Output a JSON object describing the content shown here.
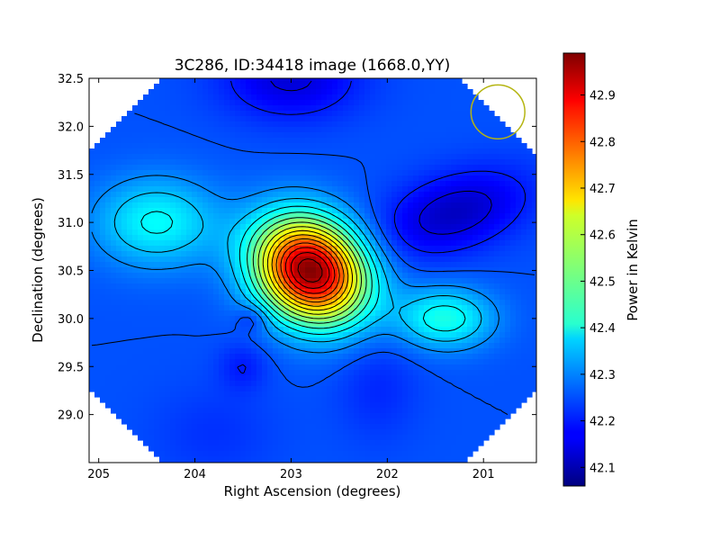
{
  "chart_data": {
    "type": "heatmap",
    "title": "3C286, ID:34418 image (1668.0,YY)",
    "xlabel": "Right Ascension (degrees)",
    "ylabel": "Declination (degrees)",
    "xlim": [
      205.1,
      200.45
    ],
    "ylim": [
      28.5,
      32.5
    ],
    "x_ticks": [
      205,
      204,
      203,
      202,
      201
    ],
    "x_tick_labels": [
      "205",
      "204",
      "203",
      "202",
      "201"
    ],
    "y_ticks": [
      29.0,
      29.5,
      30.0,
      30.5,
      31.0,
      31.5,
      32.0,
      32.5
    ],
    "y_tick_labels": [
      "29.0",
      "29.5",
      "30.0",
      "30.5",
      "31.0",
      "31.5",
      "32.0",
      "32.5"
    ],
    "colorbar": {
      "label": "Power in Kelvin",
      "colormap": "jet",
      "range": [
        42.06,
        42.99
      ],
      "ticks": [
        42.1,
        42.2,
        42.3,
        42.4,
        42.5,
        42.6,
        42.7,
        42.8,
        42.9
      ],
      "tick_labels": [
        "42.1",
        "42.2",
        "42.3",
        "42.4",
        "42.5",
        "42.6",
        "42.7",
        "42.8",
        "42.9"
      ]
    },
    "background_level": 42.25,
    "features": [
      {
        "ra": 202.8,
        "dec": 30.5,
        "peak": 42.99
      },
      {
        "ra": 204.4,
        "dec": 31.0,
        "peak": 42.41
      },
      {
        "ra": 201.4,
        "dec": 30.0,
        "peak": 42.43
      },
      {
        "ra": 201.3,
        "dec": 31.1,
        "peak": 42.12
      },
      {
        "ra": 203.0,
        "dec": 32.5,
        "peak": 42.14
      },
      {
        "ra": 203.4,
        "dec": 30.0,
        "peak": 42.19
      },
      {
        "ra": 203.5,
        "dec": 29.5,
        "peak": 42.2
      },
      {
        "ra": 202.1,
        "dec": 29.3,
        "peak": 42.21
      },
      {
        "ra": 203.8,
        "dec": 28.8,
        "peak": 42.22
      }
    ],
    "contour_interval": 0.05,
    "beam_marker": {
      "ra": 200.85,
      "dec": 32.15,
      "radius_deg": 0.28,
      "color": "#b5b512"
    },
    "grid": false,
    "colors": {
      "axis": "#000000",
      "contour": "#000000"
    }
  }
}
